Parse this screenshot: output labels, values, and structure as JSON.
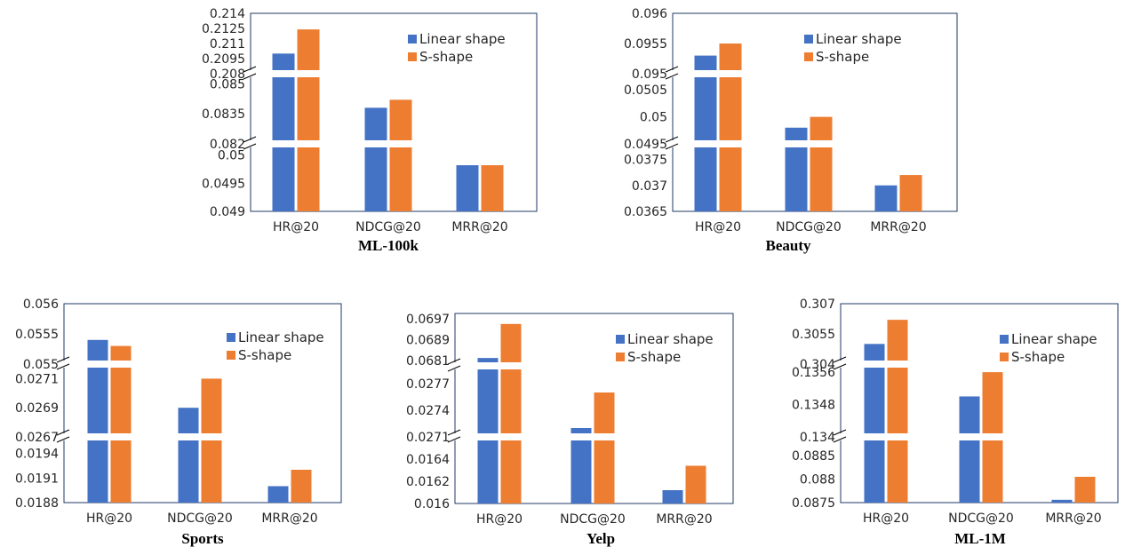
{
  "colors": {
    "linear": "#4472C4",
    "s_shape": "#ED7D31",
    "frame": "#1F3864",
    "text": "#262626"
  },
  "chart_data": [
    {
      "type": "bar",
      "title": "ML-100k",
      "categories": [
        "HR@20",
        "NDCG@20",
        "MRR@20"
      ],
      "broken_axis": true,
      "segments": [
        {
          "ylim": [
            0.208,
            0.214
          ],
          "ticks": [
            "0.214",
            "0.2125",
            "0.211",
            "0.2095",
            "0.208"
          ]
        },
        {
          "ylim": [
            0.082,
            0.0855
          ],
          "ticks": [
            "0.085",
            "0.0835",
            "0.082"
          ]
        },
        {
          "ylim": [
            0.049,
            0.0502
          ],
          "ticks": [
            "0.05",
            "0.0495",
            "0.049"
          ]
        }
      ],
      "series": [
        {
          "name": "Linear shape",
          "values": [
            0.21,
            0.0838,
            0.04982
          ]
        },
        {
          "name": "S-shape",
          "values": [
            0.2124,
            0.0842,
            0.04982
          ]
        }
      ],
      "legend": "top-right"
    },
    {
      "type": "bar",
      "title": "Beauty",
      "categories": [
        "HR@20",
        "NDCG@20",
        "MRR@20"
      ],
      "broken_axis": true,
      "segments": [
        {
          "ylim": [
            0.095,
            0.096
          ],
          "ticks": [
            "0.096",
            "0.0955",
            "0.095"
          ]
        },
        {
          "ylim": [
            0.0495,
            0.0508
          ],
          "ticks": [
            "0.0505",
            "0.05",
            "0.0495"
          ]
        },
        {
          "ylim": [
            0.0365,
            0.0378
          ],
          "ticks": [
            "0.0375",
            "0.037",
            "0.0365"
          ]
        }
      ],
      "series": [
        {
          "name": "Linear shape",
          "values": [
            0.0953,
            0.0498,
            0.037
          ]
        },
        {
          "name": "S-shape",
          "values": [
            0.0955,
            0.05,
            0.0372
          ]
        }
      ],
      "legend": "top-right"
    },
    {
      "type": "bar",
      "title": "Sports",
      "categories": [
        "HR@20",
        "NDCG@20",
        "MRR@20"
      ],
      "broken_axis": true,
      "segments": [
        {
          "ylim": [
            0.055,
            0.056
          ],
          "ticks": [
            "0.056",
            "0.0555",
            "0.055"
          ]
        },
        {
          "ylim": [
            0.0267,
            0.0272
          ],
          "ticks": [
            "0.0271",
            "0.0269",
            "0.0267"
          ]
        },
        {
          "ylim": [
            0.0188,
            0.0196
          ],
          "ticks": [
            "0.0194",
            "0.0191",
            "0.0188"
          ]
        }
      ],
      "series": [
        {
          "name": "Linear shape",
          "values": [
            0.0554,
            0.0269,
            0.019
          ]
        },
        {
          "name": "S-shape",
          "values": [
            0.0553,
            0.0271,
            0.0192
          ]
        }
      ],
      "legend": "top-right"
    },
    {
      "type": "bar",
      "title": "Yelp",
      "categories": [
        "HR@20",
        "NDCG@20",
        "MRR@20"
      ],
      "broken_axis": true,
      "segments": [
        {
          "ylim": [
            0.0679,
            0.0699
          ],
          "ticks": [
            "0.0697",
            "0.0689",
            "0.0681"
          ]
        },
        {
          "ylim": [
            0.0271,
            0.0279
          ],
          "ticks": [
            "0.0277",
            "0.0274",
            "0.0271"
          ]
        },
        {
          "ylim": [
            0.016,
            0.0166
          ],
          "ticks": [
            "0.0164",
            "0.0162",
            "0.016"
          ]
        }
      ],
      "series": [
        {
          "name": "Linear shape",
          "values": [
            0.0682,
            0.0272,
            0.01612
          ]
        },
        {
          "name": "S-shape",
          "values": [
            0.0695,
            0.0276,
            0.01634
          ]
        }
      ],
      "legend": "top-right"
    },
    {
      "type": "bar",
      "title": "ML-1M",
      "categories": [
        "HR@20",
        "NDCG@20",
        "MRR@20"
      ],
      "broken_axis": true,
      "segments": [
        {
          "ylim": [
            0.304,
            0.307
          ],
          "ticks": [
            "0.307",
            "0.3055",
            "0.304"
          ]
        },
        {
          "ylim": [
            0.134,
            0.1358
          ],
          "ticks": [
            "0.1356",
            "0.1348",
            "0.134"
          ]
        },
        {
          "ylim": [
            0.0875,
            0.0889
          ],
          "ticks": [
            "0.0885",
            "0.088",
            "0.0875"
          ]
        }
      ],
      "series": [
        {
          "name": "Linear shape",
          "values": [
            0.305,
            0.135,
            0.08756
          ]
        },
        {
          "name": "S-shape",
          "values": [
            0.3062,
            0.1356,
            0.08805
          ]
        }
      ],
      "legend": "top-right"
    }
  ]
}
